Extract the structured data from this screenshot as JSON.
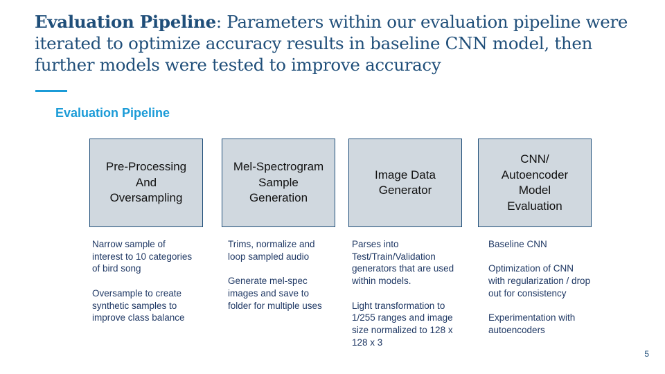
{
  "slide": {
    "title_bold": "Evaluation  Pipeline",
    "title_rest": ": Parameters within our evaluation pipeline were iterated to  optimize accuracy results in baseline CNN model, then further models were tested to improve accuracy",
    "section_heading": "Evaluation Pipeline",
    "page_number": "5",
    "accent_color": "#1b9bd7",
    "title_color": "#1f4e79"
  },
  "pipeline": [
    {
      "label": "Pre-Processing\nAnd\nOversampling",
      "description": "Narrow sample of interest to 10 categories of bird song\n\nOversample to create synthetic samples to improve class balance"
    },
    {
      "label": "Mel-Spectrogram\nSample\nGeneration",
      "description": "Trims, normalize and loop sampled audio\n\nGenerate mel-spec images and save to folder for multiple uses"
    },
    {
      "label": "Image Data\nGenerator",
      "description": "Parses into Test/Train/Validation generators that are used within models.\n\nLight transformation to 1/255 ranges and image size normalized to  128 x 128 x 3"
    },
    {
      "label": "CNN/\nAutoencoder\nModel\nEvaluation",
      "description": "Baseline CNN\n\nOptimization of CNN with regularization / drop out for consistency\n\nExperimentation with autoencoders"
    }
  ]
}
